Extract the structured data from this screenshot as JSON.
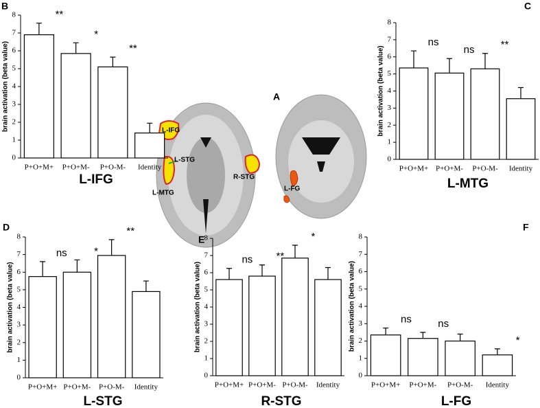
{
  "chart_data": [
    {
      "type": "bar",
      "panel": "B",
      "title": "L-IFG",
      "y_label": "brain activation (beta value)",
      "categories": [
        "P+O+M+",
        "P+O+M-",
        "P+O-M-",
        "Identity"
      ],
      "values": [
        6.9,
        5.85,
        5.1,
        1.4
      ],
      "errors": [
        0.65,
        0.6,
        0.55,
        0.55
      ],
      "annotations": [
        "**",
        "*",
        "**",
        null
      ],
      "ylim": [
        0,
        8
      ],
      "yticks": [
        0,
        1,
        2,
        3,
        4,
        5,
        6,
        7,
        8
      ],
      "color": "#ffffff"
    },
    {
      "type": "bar",
      "panel": "C",
      "title": "L-MTG",
      "y_label": "brain activation (beta value)",
      "categories": [
        "P+O+M+",
        "P+O+M-",
        "P+O-M-",
        "Identity"
      ],
      "values": [
        5.35,
        5.05,
        5.3,
        3.55
      ],
      "errors": [
        1.0,
        0.85,
        0.9,
        0.65
      ],
      "annotations": [
        "ns",
        "ns",
        "**",
        null
      ],
      "ylim": [
        0,
        8
      ],
      "yticks": [
        0,
        1,
        2,
        3,
        4,
        5,
        6,
        7,
        8
      ],
      "color": "#ffffff"
    },
    {
      "type": "bar",
      "panel": "D",
      "title": "L-STG",
      "y_label": "brain activation (beta value)",
      "categories": [
        "P+O+M+",
        "P+O+M-",
        "P+O-M-",
        "Identity"
      ],
      "values": [
        5.75,
        6.0,
        6.95,
        4.9
      ],
      "errors": [
        0.85,
        0.7,
        0.9,
        0.6
      ],
      "annotations": [
        "ns",
        "*",
        "**",
        null
      ],
      "ylim": [
        0,
        8
      ],
      "yticks": [
        0,
        1,
        2,
        3,
        4,
        5,
        6,
        7,
        8
      ],
      "color": "#ffffff"
    },
    {
      "type": "bar",
      "panel": "E",
      "title": "R-STG",
      "y_label": "brain activation (beta value)",
      "categories": [
        "P+O+M+",
        "P+O+M-",
        "P+O-M-",
        "Identity"
      ],
      "values": [
        5.6,
        5.8,
        6.85,
        5.6
      ],
      "errors": [
        0.65,
        0.65,
        0.75,
        0.7
      ],
      "annotations": [
        "ns",
        "**",
        "*",
        null
      ],
      "ylim": [
        0,
        8
      ],
      "yticks": [
        0,
        1,
        2,
        3,
        4,
        5,
        6,
        7,
        8
      ],
      "color": "#ffffff"
    },
    {
      "type": "bar",
      "panel": "F",
      "title": "L-FG",
      "y_label": "brain activation (beta value)",
      "categories": [
        "P+O+M+",
        "P+O+M-",
        "P+O-M-",
        "Identity"
      ],
      "values": [
        2.35,
        2.15,
        2.0,
        1.2
      ],
      "errors": [
        0.4,
        0.35,
        0.4,
        0.35
      ],
      "annotations": [
        "ns",
        "ns",
        null,
        "*"
      ],
      "ylim": [
        0,
        8
      ],
      "yticks": [
        0,
        1,
        2,
        3,
        4,
        5,
        6,
        7,
        8
      ],
      "color": "#ffffff"
    }
  ],
  "brain_panel": {
    "panel": "A",
    "regions": [
      "L-IFG",
      "L-STG",
      "L-MTG",
      "R-STG",
      "L-FG"
    ]
  }
}
